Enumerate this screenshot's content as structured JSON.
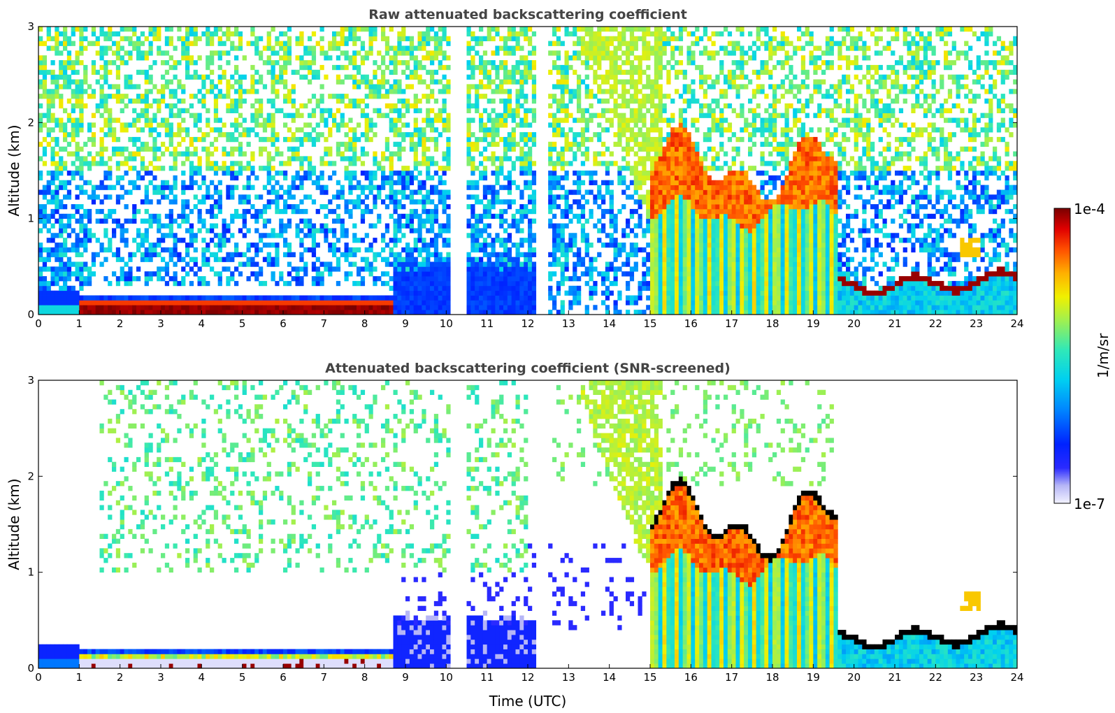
{
  "figure": {
    "xlabel": "Time (UTC)",
    "colorbar": {
      "label": "1/m/sr",
      "min_label": "1e-7",
      "max_label": "1e-4",
      "scale": "log",
      "colormap": "jet"
    }
  },
  "chart_data": [
    {
      "type": "heatmap",
      "title": "Raw attenuated backscattering coefficient",
      "xlabel": "",
      "ylabel": "Altitude (km)",
      "xlim": [
        0,
        24
      ],
      "ylim": [
        0,
        3
      ],
      "xticks": [
        "0",
        "1",
        "2",
        "3",
        "4",
        "5",
        "6",
        "7",
        "8",
        "9",
        "10",
        "11",
        "12",
        "13",
        "14",
        "15",
        "16",
        "17",
        "18",
        "19",
        "20",
        "21",
        "22",
        "23",
        "24"
      ],
      "yticks": [
        "0",
        "1",
        "2",
        "3"
      ],
      "data_gaps_utc": [
        [
          10.15,
          10.55
        ],
        [
          12.25,
          12.55
        ]
      ],
      "features": [
        {
          "name": "nocturnal surface layer",
          "x": [
            1.0,
            8.7
          ],
          "altitude_km": [
            0.05,
            0.12
          ],
          "value": "1e-4"
        },
        {
          "name": "cloud layer",
          "x": [
            15.0,
            19.5
          ],
          "altitude_km": [
            1.0,
            1.8
          ],
          "value": "3e-5"
        },
        {
          "name": "boundary layer top",
          "x": [
            19.5,
            24.0
          ],
          "altitude_km": [
            0.2,
            0.4
          ],
          "value": "1e-4"
        }
      ]
    },
    {
      "type": "heatmap",
      "title": "Attenuated backscattering coefficient (SNR-screened)",
      "xlabel": "Time (UTC)",
      "ylabel": "Altitude (km)",
      "xlim": [
        0,
        24
      ],
      "ylim": [
        0,
        3
      ],
      "xticks": [
        "0",
        "1",
        "2",
        "3",
        "4",
        "5",
        "6",
        "7",
        "8",
        "9",
        "10",
        "11",
        "12",
        "13",
        "14",
        "15",
        "16",
        "17",
        "18",
        "19",
        "20",
        "21",
        "22",
        "23",
        "24"
      ],
      "yticks": [
        "0",
        "1",
        "2",
        "3"
      ],
      "data_gaps_utc": [
        [
          10.15,
          10.55
        ],
        [
          12.25,
          12.55
        ]
      ]
    }
  ]
}
